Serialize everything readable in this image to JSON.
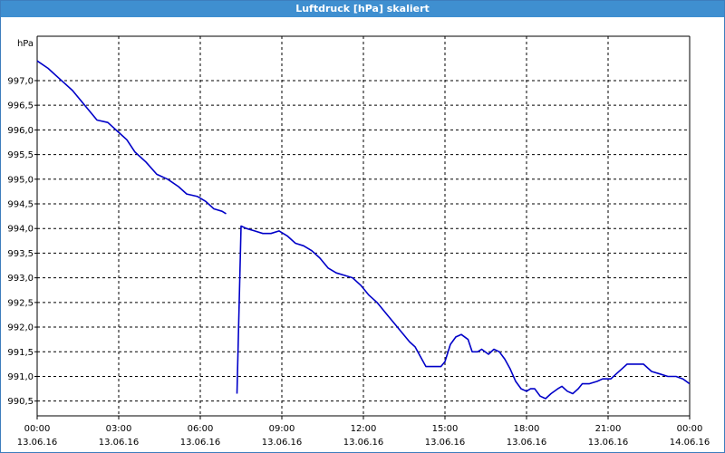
{
  "window": {
    "title": "Luftdruck [hPa] skaliert"
  },
  "colors": {
    "titlebar": "#3f8fd0",
    "line": "#0000c8",
    "grid": "#000000"
  },
  "chart_data": {
    "type": "line",
    "title": "Luftdruck [hPa] skaliert",
    "ylabel": "hPa",
    "xlabel": "",
    "ylim": [
      990.2,
      997.9
    ],
    "xlim": [
      0,
      24
    ],
    "grid": true,
    "y_ticks": [
      "990,5",
      "991,0",
      "991,5",
      "992,0",
      "992,5",
      "993,0",
      "993,5",
      "994,0",
      "994,5",
      "995,0",
      "995,5",
      "996,0",
      "996,5",
      "997,0"
    ],
    "y_tick_values": [
      990.5,
      991.0,
      991.5,
      992.0,
      992.5,
      993.0,
      993.5,
      994.0,
      994.5,
      995.0,
      995.5,
      996.0,
      996.5,
      997.0
    ],
    "x_ticks": [
      {
        "time": "00:00",
        "date": "13.06.16"
      },
      {
        "time": "03:00",
        "date": "13.06.16"
      },
      {
        "time": "06:00",
        "date": "13.06.16"
      },
      {
        "time": "09:00",
        "date": "13.06.16"
      },
      {
        "time": "12:00",
        "date": "13.06.16"
      },
      {
        "time": "15:00",
        "date": "13.06.16"
      },
      {
        "time": "18:00",
        "date": "13.06.16"
      },
      {
        "time": "21:00",
        "date": "13.06.16"
      },
      {
        "time": "00:00",
        "date": "14.06.16"
      }
    ],
    "x_tick_values": [
      0,
      3,
      6,
      9,
      12,
      15,
      18,
      21,
      24
    ],
    "series": [
      {
        "values_hour_hpa": [
          [
            0.0,
            997.4
          ],
          [
            0.4,
            997.25
          ],
          [
            0.8,
            997.05
          ],
          [
            1.0,
            996.95
          ],
          [
            1.3,
            996.8
          ],
          [
            1.6,
            996.6
          ],
          [
            1.9,
            996.4
          ],
          [
            2.2,
            996.2
          ],
          [
            2.6,
            996.15
          ],
          [
            2.8,
            996.05
          ],
          [
            3.0,
            995.95
          ],
          [
            3.3,
            995.8
          ],
          [
            3.6,
            995.55
          ],
          [
            4.0,
            995.35
          ],
          [
            4.4,
            995.1
          ],
          [
            4.8,
            995.0
          ],
          [
            5.2,
            994.85
          ],
          [
            5.5,
            994.7
          ],
          [
            5.9,
            994.65
          ],
          [
            6.2,
            994.55
          ],
          [
            6.5,
            994.4
          ],
          [
            6.8,
            994.35
          ],
          [
            6.95,
            994.3
          ]
        ]
      },
      {
        "values_hour_hpa": [
          [
            7.35,
            990.65
          ],
          [
            7.5,
            994.05
          ],
          [
            7.7,
            994.0
          ],
          [
            8.0,
            993.95
          ],
          [
            8.3,
            993.9
          ],
          [
            8.6,
            993.9
          ],
          [
            8.9,
            993.95
          ],
          [
            9.2,
            993.85
          ],
          [
            9.5,
            993.7
          ],
          [
            9.8,
            993.65
          ],
          [
            10.1,
            993.55
          ],
          [
            10.4,
            993.4
          ],
          [
            10.7,
            993.2
          ],
          [
            11.0,
            993.1
          ],
          [
            11.3,
            993.05
          ],
          [
            11.6,
            993.0
          ],
          [
            11.9,
            992.85
          ],
          [
            12.2,
            992.65
          ],
          [
            12.5,
            992.5
          ],
          [
            12.8,
            992.3
          ],
          [
            13.1,
            992.1
          ],
          [
            13.4,
            991.9
          ],
          [
            13.7,
            991.7
          ],
          [
            13.9,
            991.6
          ],
          [
            14.1,
            991.4
          ],
          [
            14.3,
            991.2
          ],
          [
            14.6,
            991.2
          ],
          [
            14.85,
            991.2
          ],
          [
            15.0,
            991.3
          ],
          [
            15.2,
            991.65
          ],
          [
            15.4,
            991.8
          ],
          [
            15.6,
            991.85
          ],
          [
            15.85,
            991.75
          ],
          [
            16.0,
            991.5
          ],
          [
            16.2,
            991.5
          ],
          [
            16.35,
            991.55
          ],
          [
            16.6,
            991.45
          ],
          [
            16.8,
            991.55
          ],
          [
            17.0,
            991.5
          ],
          [
            17.2,
            991.35
          ],
          [
            17.4,
            991.15
          ],
          [
            17.6,
            990.9
          ],
          [
            17.8,
            990.75
          ],
          [
            18.0,
            990.7
          ],
          [
            18.15,
            990.75
          ],
          [
            18.3,
            990.75
          ],
          [
            18.5,
            990.6
          ],
          [
            18.7,
            990.55
          ],
          [
            18.9,
            990.65
          ],
          [
            19.15,
            990.75
          ],
          [
            19.3,
            990.8
          ],
          [
            19.5,
            990.7
          ],
          [
            19.7,
            990.65
          ],
          [
            19.9,
            990.75
          ],
          [
            20.05,
            990.85
          ],
          [
            20.3,
            990.85
          ],
          [
            20.6,
            990.9
          ],
          [
            20.8,
            990.95
          ],
          [
            21.1,
            990.95
          ],
          [
            21.3,
            991.05
          ],
          [
            21.5,
            991.15
          ],
          [
            21.7,
            991.25
          ],
          [
            22.0,
            991.25
          ],
          [
            22.3,
            991.25
          ],
          [
            22.6,
            991.1
          ],
          [
            22.9,
            991.05
          ],
          [
            23.2,
            991.0
          ],
          [
            23.5,
            991.0
          ],
          [
            23.75,
            990.95
          ],
          [
            24.0,
            990.85
          ]
        ]
      }
    ]
  }
}
